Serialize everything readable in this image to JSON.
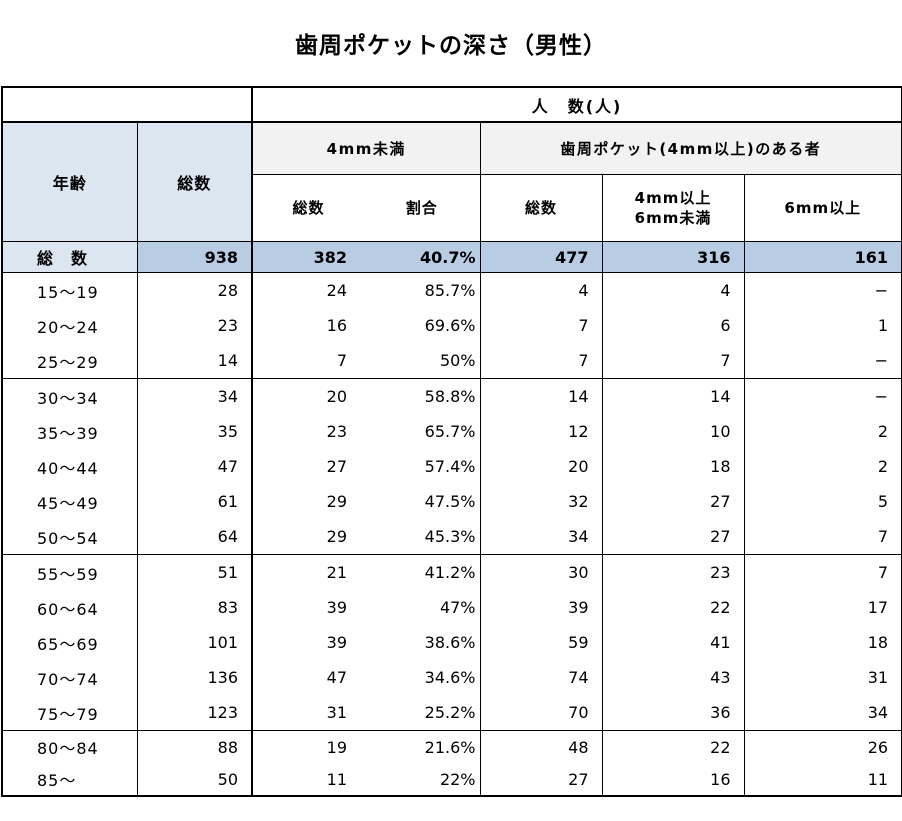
{
  "title": "歯周ポケットの深さ（男性）",
  "colors": {
    "header_blue": "#dce6f1",
    "total_row_blue": "#b8cce4",
    "header_gray": "#f2f2f2",
    "border_black": "#000000",
    "background": "#ffffff"
  },
  "chart_data": {
    "type": "table",
    "title": "歯周ポケットの深さ（男性）",
    "header": {
      "ninzu": "人　数(人)",
      "age": "年齢",
      "total": "総数",
      "under4mm": "4mm未満",
      "pocket4mm": "歯周ポケット(4mm以上)のある者",
      "sub_total1": "総数",
      "sub_ratio": "割合",
      "sub_total2": "総数",
      "sub_4to6_line1": "4mm以上",
      "sub_4to6_line2": "6mm未満",
      "sub_6mm": "6mm以上"
    },
    "columns": [
      "年齢",
      "総数",
      "4mm未満 総数",
      "4mm未満 割合",
      "歯周ポケット(4mm以上)のある者 総数",
      "4mm以上6mm未満",
      "6mm以上"
    ],
    "rows": [
      {
        "label": "総　数",
        "values": [
          "938",
          "382",
          "40.7%",
          "477",
          "316",
          "161"
        ],
        "type": "total"
      },
      {
        "label": "15〜19",
        "values": [
          "28",
          "24",
          "85.7%",
          "4",
          "4",
          "−"
        ],
        "group_start": true
      },
      {
        "label": "20〜24",
        "values": [
          "23",
          "16",
          "69.6%",
          "7",
          "6",
          "1"
        ]
      },
      {
        "label": "25〜29",
        "values": [
          "14",
          "7",
          "50%",
          "7",
          "7",
          "−"
        ]
      },
      {
        "label": "30〜34",
        "values": [
          "34",
          "20",
          "58.8%",
          "14",
          "14",
          "−"
        ],
        "group_start": true
      },
      {
        "label": "35〜39",
        "values": [
          "35",
          "23",
          "65.7%",
          "12",
          "10",
          "2"
        ]
      },
      {
        "label": "40〜44",
        "values": [
          "47",
          "27",
          "57.4%",
          "20",
          "18",
          "2"
        ]
      },
      {
        "label": "45〜49",
        "values": [
          "61",
          "29",
          "47.5%",
          "32",
          "27",
          "5"
        ]
      },
      {
        "label": "50〜54",
        "values": [
          "64",
          "29",
          "45.3%",
          "34",
          "27",
          "7"
        ]
      },
      {
        "label": "55〜59",
        "values": [
          "51",
          "21",
          "41.2%",
          "30",
          "23",
          "7"
        ],
        "group_start": true
      },
      {
        "label": "60〜64",
        "values": [
          "83",
          "39",
          "47%",
          "39",
          "22",
          "17"
        ]
      },
      {
        "label": "65〜69",
        "values": [
          "101",
          "39",
          "38.6%",
          "59",
          "41",
          "18"
        ]
      },
      {
        "label": "70〜74",
        "values": [
          "136",
          "47",
          "34.6%",
          "74",
          "43",
          "31"
        ]
      },
      {
        "label": "75〜79",
        "values": [
          "123",
          "31",
          "25.2%",
          "70",
          "36",
          "34"
        ]
      },
      {
        "label": "80〜84",
        "values": [
          "88",
          "19",
          "21.6%",
          "48",
          "22",
          "26"
        ],
        "group_start": true,
        "last_group": true
      },
      {
        "label": "85〜",
        "values": [
          "50",
          "11",
          "22%",
          "27",
          "16",
          "11"
        ],
        "last_group": true
      }
    ]
  }
}
